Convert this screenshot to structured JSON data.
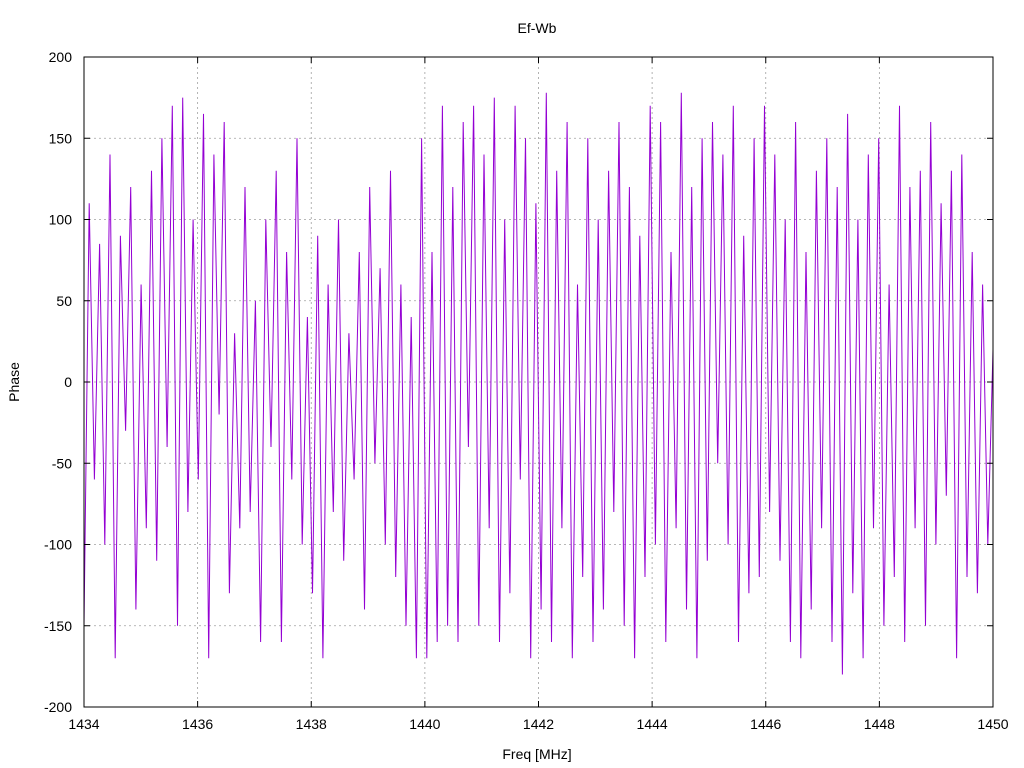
{
  "chart_data": {
    "type": "line",
    "title": "Ef-Wb",
    "xlabel": "Freq [MHz]",
    "ylabel": "Phase",
    "xlim": [
      1434,
      1450
    ],
    "ylim": [
      -200,
      200
    ],
    "xticks": [
      "1434",
      "1436",
      "1438",
      "1440",
      "1442",
      "1444",
      "1446",
      "1448",
      "1450"
    ],
    "yticks": [
      "200",
      "150",
      "100",
      "50",
      "0",
      "-50",
      "-100",
      "-150",
      "-200"
    ],
    "grid": true,
    "series": [
      {
        "name": "phase",
        "color": "#9400d3",
        "x_spacing": "uniform over xlim",
        "values": [
          -150,
          110,
          -60,
          85,
          -100,
          140,
          -170,
          90,
          -30,
          120,
          -140,
          60,
          -90,
          130,
          -110,
          150,
          -40,
          170,
          -150,
          175,
          -80,
          100,
          -60,
          165,
          -170,
          140,
          -20,
          160,
          -130,
          30,
          -90,
          120,
          -80,
          50,
          -160,
          100,
          -40,
          130,
          -160,
          80,
          -60,
          150,
          -100,
          40,
          -130,
          90,
          -170,
          60,
          -80,
          100,
          -110,
          30,
          -60,
          80,
          -140,
          120,
          -50,
          70,
          -100,
          130,
          -120,
          60,
          -150,
          40,
          -170,
          150,
          -170,
          80,
          -160,
          170,
          -150,
          120,
          -160,
          160,
          -40,
          170,
          -150,
          140,
          -90,
          175,
          -160,
          100,
          -130,
          170,
          -60,
          150,
          -170,
          110,
          -140,
          178,
          -160,
          130,
          -90,
          160,
          -170,
          60,
          -120,
          150,
          -160,
          100,
          -140,
          130,
          -80,
          160,
          -150,
          120,
          -170,
          90,
          -120,
          170,
          -100,
          160,
          -160,
          80,
          -90,
          178,
          -140,
          120,
          -170,
          150,
          -110,
          160,
          -50,
          140,
          -100,
          170,
          -160,
          90,
          -130,
          150,
          -120,
          170,
          -80,
          140,
          -110,
          100,
          -160,
          160,
          -170,
          80,
          -140,
          130,
          -90,
          150,
          -160,
          120,
          -180,
          165,
          -130,
          100,
          -170,
          140,
          -90,
          150,
          -150,
          60,
          -120,
          170,
          -160,
          120,
          -90,
          130,
          -150,
          160,
          -100,
          110,
          -70,
          130,
          -170,
          140,
          -120,
          80,
          -130,
          60,
          -100,
          20
        ]
      }
    ]
  }
}
